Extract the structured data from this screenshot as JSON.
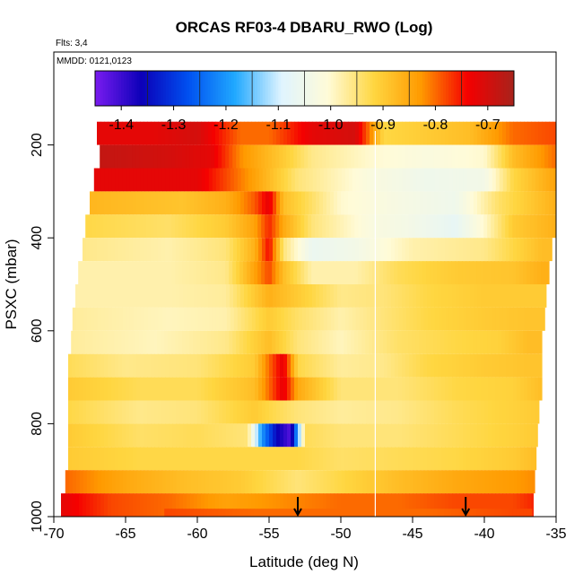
{
  "chart_data": {
    "type": "heatmap",
    "title": "ORCAS RF03-4 DBARU_RWO (Log)",
    "flights_label": "Flts: 3,4",
    "dates_label": "MMDD: 0121,0123",
    "xlabel": "Latitude (deg N)",
    "ylabel": "PSXC (mbar)",
    "xlim": [
      -70,
      -35
    ],
    "ylim": [
      1000,
      0
    ],
    "x_ticks": [
      -70,
      -65,
      -60,
      -55,
      -50,
      -45,
      -40,
      -35
    ],
    "y_ticks": [
      200,
      400,
      600,
      800,
      1000
    ],
    "colorbar": {
      "range": [
        -1.45,
        -0.65
      ],
      "ticks": [
        -1.4,
        -1.3,
        -1.2,
        -1.1,
        -1.0,
        -0.9,
        -0.8,
        -0.7
      ],
      "tick_labels": [
        "-1.4",
        "-1.3",
        "-1.2",
        "-1.1",
        "-1.0",
        "-0.9",
        "-0.8",
        "-0.7"
      ],
      "colors": [
        "#7a1cf0",
        "#0b00b8",
        "#0050f0",
        "#20a8ff",
        "#dff4ff",
        "#fffbd8",
        "#ffd640",
        "#ff9a00",
        "#f50000",
        "#a8231c"
      ]
    },
    "level_bands": [
      {
        "p": 175,
        "x_start": -67.0,
        "x_end": -35.0,
        "profile": [
          [
            -67,
            -0.72
          ],
          [
            -63,
            -0.72
          ],
          [
            -60,
            -0.7
          ],
          [
            -57,
            -0.8
          ],
          [
            -55,
            -0.8
          ],
          [
            -52,
            -0.72
          ],
          [
            -49,
            -0.7
          ],
          [
            -47,
            -0.92
          ],
          [
            -44,
            -0.9
          ],
          [
            -41,
            -0.88
          ],
          [
            -38,
            -0.8
          ],
          [
            -35,
            -0.78
          ]
        ]
      },
      {
        "p": 225,
        "x_start": -66.8,
        "x_end": -35.0,
        "profile": [
          [
            -67,
            -0.68
          ],
          [
            -62,
            -0.7
          ],
          [
            -59,
            -0.72
          ],
          [
            -57,
            -0.82
          ],
          [
            -54,
            -0.9
          ],
          [
            -52,
            -0.96
          ],
          [
            -48,
            -1.0
          ],
          [
            -44,
            -1.02
          ],
          [
            -40,
            -1.0
          ],
          [
            -38,
            -0.88
          ],
          [
            -35,
            -0.8
          ]
        ]
      },
      {
        "p": 275,
        "x_start": -67.2,
        "x_end": -35.0,
        "profile": [
          [
            -67,
            -0.72
          ],
          [
            -60,
            -0.72
          ],
          [
            -58,
            -0.78
          ],
          [
            -56,
            -0.84
          ],
          [
            -53,
            -0.95
          ],
          [
            -48,
            -1.02
          ],
          [
            -44,
            -1.05
          ],
          [
            -40,
            -1.04
          ],
          [
            -38,
            -0.92
          ],
          [
            -35,
            -0.84
          ]
        ]
      },
      {
        "p": 325,
        "x_start": -67.5,
        "x_end": -35.0,
        "profile": [
          [
            -67.5,
            -0.87
          ],
          [
            -61,
            -0.89
          ],
          [
            -58,
            -0.86
          ],
          [
            -56,
            -0.79
          ],
          [
            -55,
            -0.72
          ],
          [
            -54,
            -0.88
          ],
          [
            -50,
            -1.0
          ],
          [
            -46,
            -1.03
          ],
          [
            -42,
            -1.05
          ],
          [
            -39,
            -0.94
          ],
          [
            -35,
            -0.86
          ]
        ]
      },
      {
        "p": 375,
        "x_start": -67.8,
        "x_end": -35.0,
        "profile": [
          [
            -68,
            -0.92
          ],
          [
            -62,
            -0.94
          ],
          [
            -58,
            -0.9
          ],
          [
            -56,
            -0.84
          ],
          [
            -55,
            -0.76
          ],
          [
            -54,
            -0.85
          ],
          [
            -52,
            -0.95
          ],
          [
            -48,
            -1.02
          ],
          [
            -45,
            -1.04
          ],
          [
            -42,
            -1.07
          ],
          [
            -40,
            -1.0
          ],
          [
            -38,
            -0.9
          ],
          [
            -35,
            -0.86
          ]
        ]
      },
      {
        "p": 425,
        "x_start": -68.0,
        "x_end": -35.3,
        "profile": [
          [
            -68,
            -0.96
          ],
          [
            -62,
            -0.98
          ],
          [
            -58,
            -0.95
          ],
          [
            -56,
            -0.86
          ],
          [
            -55,
            -0.74
          ],
          [
            -54,
            -0.95
          ],
          [
            -52,
            -1.06
          ],
          [
            -49,
            -1.04
          ],
          [
            -45,
            -0.98
          ],
          [
            -40,
            -0.96
          ],
          [
            -36,
            -0.88
          ]
        ]
      },
      {
        "p": 475,
        "x_start": -68.3,
        "x_end": -35.5,
        "profile": [
          [
            -68,
            -0.98
          ],
          [
            -62,
            -0.98
          ],
          [
            -58,
            -0.96
          ],
          [
            -55,
            -0.78
          ],
          [
            -54,
            -0.88
          ],
          [
            -52,
            -0.98
          ],
          [
            -49,
            -0.98
          ],
          [
            -46,
            -0.93
          ],
          [
            -42,
            -0.9
          ],
          [
            -38,
            -0.89
          ],
          [
            -36,
            -0.86
          ]
        ]
      },
      {
        "p": 525,
        "x_start": -68.5,
        "x_end": -35.7,
        "profile": [
          [
            -68.5,
            -0.98
          ],
          [
            -62,
            -0.98
          ],
          [
            -58,
            -0.97
          ],
          [
            -55,
            -0.86
          ],
          [
            -53,
            -0.9
          ],
          [
            -50,
            -0.96
          ],
          [
            -47,
            -0.95
          ],
          [
            -44,
            -0.92
          ],
          [
            -40,
            -0.9
          ],
          [
            -37,
            -0.9
          ]
        ]
      },
      {
        "p": 575,
        "x_start": -68.7,
        "x_end": -35.8,
        "profile": [
          [
            -68.7,
            -0.97
          ],
          [
            -62,
            -0.99
          ],
          [
            -58,
            -0.98
          ],
          [
            -55,
            -0.9
          ],
          [
            -53,
            -0.94
          ],
          [
            -50,
            -0.98
          ],
          [
            -47,
            -0.95
          ],
          [
            -44,
            -0.92
          ],
          [
            -40,
            -0.9
          ],
          [
            -37,
            -0.89
          ]
        ]
      },
      {
        "p": 625,
        "x_start": -68.8,
        "x_end": -36.0,
        "profile": [
          [
            -68.8,
            -0.97
          ],
          [
            -63,
            -0.99
          ],
          [
            -58,
            -0.96
          ],
          [
            -55,
            -0.88
          ],
          [
            -53,
            -0.95
          ],
          [
            -50,
            -0.99
          ],
          [
            -46,
            -0.94
          ],
          [
            -42,
            -0.92
          ],
          [
            -39,
            -0.91
          ],
          [
            -37,
            -0.88
          ]
        ]
      },
      {
        "p": 675,
        "x_start": -69.0,
        "x_end": -36.0,
        "profile": [
          [
            -69,
            -0.93
          ],
          [
            -65,
            -0.96
          ],
          [
            -60,
            -0.95
          ],
          [
            -56,
            -0.9
          ],
          [
            -55,
            -0.8
          ],
          [
            -54,
            -0.72
          ],
          [
            -53,
            -0.92
          ],
          [
            -50,
            -0.97
          ],
          [
            -47,
            -0.96
          ],
          [
            -44,
            -0.92
          ],
          [
            -40,
            -0.9
          ],
          [
            -37,
            -0.89
          ]
        ]
      },
      {
        "p": 725,
        "x_start": -69.0,
        "x_end": -36.0,
        "profile": [
          [
            -69,
            -0.9
          ],
          [
            -64,
            -0.93
          ],
          [
            -60,
            -0.93
          ],
          [
            -56,
            -0.88
          ],
          [
            -54,
            -0.72
          ],
          [
            -53,
            -0.85
          ],
          [
            -50,
            -0.95
          ],
          [
            -46,
            -0.95
          ],
          [
            -42,
            -0.92
          ],
          [
            -38,
            -0.91
          ],
          [
            -36,
            -0.88
          ]
        ]
      },
      {
        "p": 775,
        "x_start": -69.0,
        "x_end": -36.2,
        "profile": [
          [
            -69,
            -0.92
          ],
          [
            -64,
            -0.96
          ],
          [
            -60,
            -0.95
          ],
          [
            -56,
            -0.9
          ],
          [
            -55,
            -0.92
          ],
          [
            -53,
            -0.95
          ],
          [
            -50,
            -0.97
          ],
          [
            -46,
            -0.96
          ],
          [
            -42,
            -0.93
          ],
          [
            -38,
            -0.91
          ],
          [
            -36.2,
            -0.9
          ]
        ]
      },
      {
        "p": 825,
        "x_start": -69.0,
        "x_end": -36.3,
        "profile": [
          [
            -69,
            -0.9
          ],
          [
            -64,
            -0.94
          ],
          [
            -60,
            -0.93
          ],
          [
            -56.5,
            -0.95
          ],
          [
            -55.5,
            -1.2
          ],
          [
            -54.5,
            -1.35
          ],
          [
            -53.5,
            -1.42
          ],
          [
            -52.5,
            -0.93
          ],
          [
            -50,
            -0.95
          ],
          [
            -46,
            -0.95
          ],
          [
            -42,
            -0.93
          ],
          [
            -38,
            -0.91
          ],
          [
            -36.3,
            -0.9
          ]
        ]
      },
      {
        "p": 875,
        "x_start": -69.0,
        "x_end": -36.4,
        "profile": [
          [
            -69,
            -0.9
          ],
          [
            -64,
            -0.92
          ],
          [
            -60,
            -0.92
          ],
          [
            -56,
            -0.92
          ],
          [
            -53,
            -0.92
          ],
          [
            -50,
            -0.94
          ],
          [
            -46,
            -0.93
          ],
          [
            -42,
            -0.92
          ],
          [
            -38,
            -0.9
          ],
          [
            -36.4,
            -0.88
          ]
        ]
      },
      {
        "p": 925,
        "x_start": -69.2,
        "x_end": -36.5,
        "profile": [
          [
            -69,
            -0.8
          ],
          [
            -65,
            -0.85
          ],
          [
            -61,
            -0.88
          ],
          [
            -57,
            -0.9
          ],
          [
            -53,
            -0.95
          ],
          [
            -50,
            -0.92
          ],
          [
            -46,
            -0.88
          ],
          [
            -42,
            -0.85
          ],
          [
            -38,
            -0.83
          ],
          [
            -36.5,
            -0.82
          ]
        ]
      },
      {
        "p": 975,
        "x_start": -69.5,
        "x_end": -36.6,
        "profile": [
          [
            -69.5,
            -0.72
          ],
          [
            -66,
            -0.78
          ],
          [
            -62,
            -0.8
          ],
          [
            -58,
            -0.84
          ],
          [
            -54,
            -0.82
          ],
          [
            -50,
            -0.8
          ],
          [
            -46,
            -0.8
          ],
          [
            -42,
            -0.78
          ],
          [
            -38,
            -0.78
          ],
          [
            -36.6,
            -0.76
          ]
        ]
      },
      {
        "p": 995,
        "x_start": -62.3,
        "x_end": -36.7,
        "profile": [
          [
            -62,
            -0.78
          ],
          [
            -56,
            -0.8
          ],
          [
            -50,
            -0.8
          ],
          [
            -44,
            -0.8
          ],
          [
            -38,
            -0.78
          ],
          [
            -36.7,
            -0.78
          ]
        ]
      }
    ],
    "vertical_line": {
      "x": -47.6
    },
    "arrows": [
      {
        "x": -53.0
      },
      {
        "x": -41.3
      }
    ]
  }
}
